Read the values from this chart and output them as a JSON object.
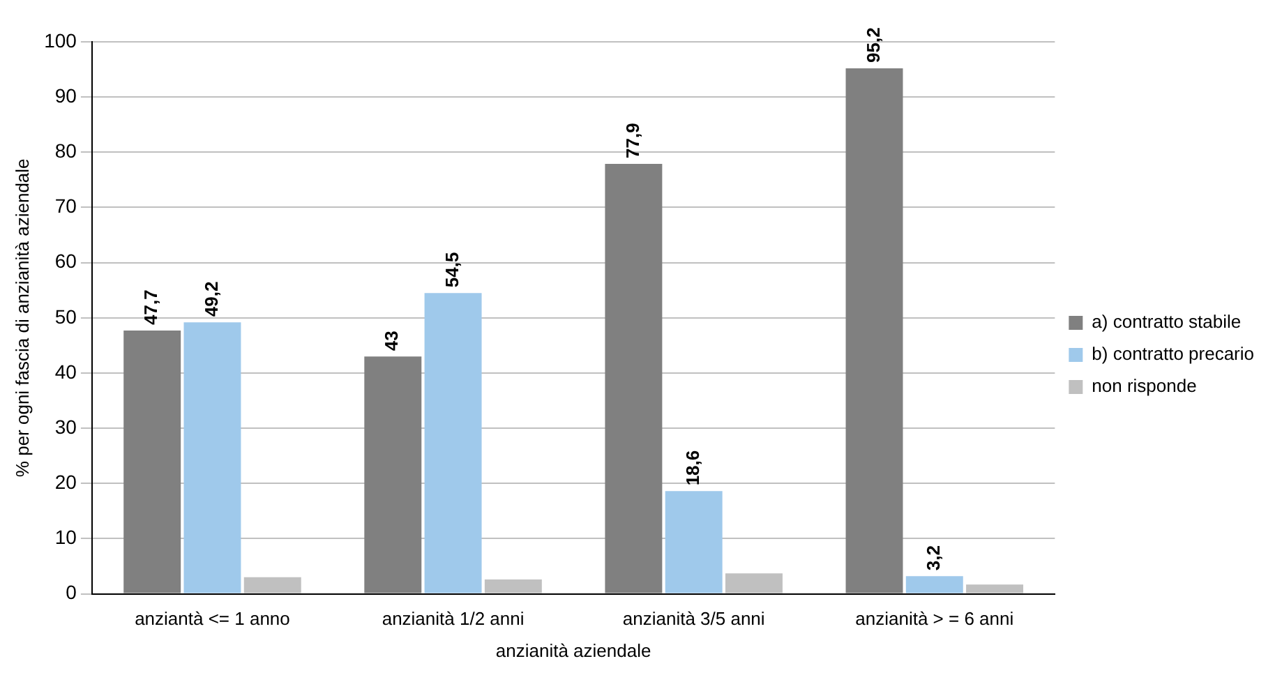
{
  "chart_data": {
    "type": "bar",
    "xlabel": "anzianità aziendale",
    "ylabel": "% per ogni fascia di anzianità aziendale",
    "categories": [
      "anziantà <= 1 anno",
      "anzianità 1/2 anni",
      "anzianità 3/5 anni",
      "anzianità > = 6 anni"
    ],
    "series": [
      {
        "name": "a) contratto stabile",
        "color": "#808080",
        "values": [
          47.7,
          43,
          77.9,
          95.2
        ],
        "value_labels": [
          "47,7",
          "43",
          "77,9",
          "95,2"
        ]
      },
      {
        "name": "b) contratto precario",
        "color": "#9fc9eb",
        "values": [
          49.2,
          54.5,
          18.6,
          3.2
        ],
        "value_labels": [
          "49,2",
          "54,5",
          "18,6",
          "3,2"
        ]
      },
      {
        "name": "non risponde",
        "color": "#c0c0c0",
        "values": [
          3,
          2.6,
          3.7,
          1.7
        ]
      }
    ],
    "ylim": [
      0,
      100
    ],
    "yticks": [
      0,
      10,
      20,
      30,
      40,
      50,
      60,
      70,
      80,
      90,
      100
    ],
    "grid": "y",
    "legend": "right"
  }
}
